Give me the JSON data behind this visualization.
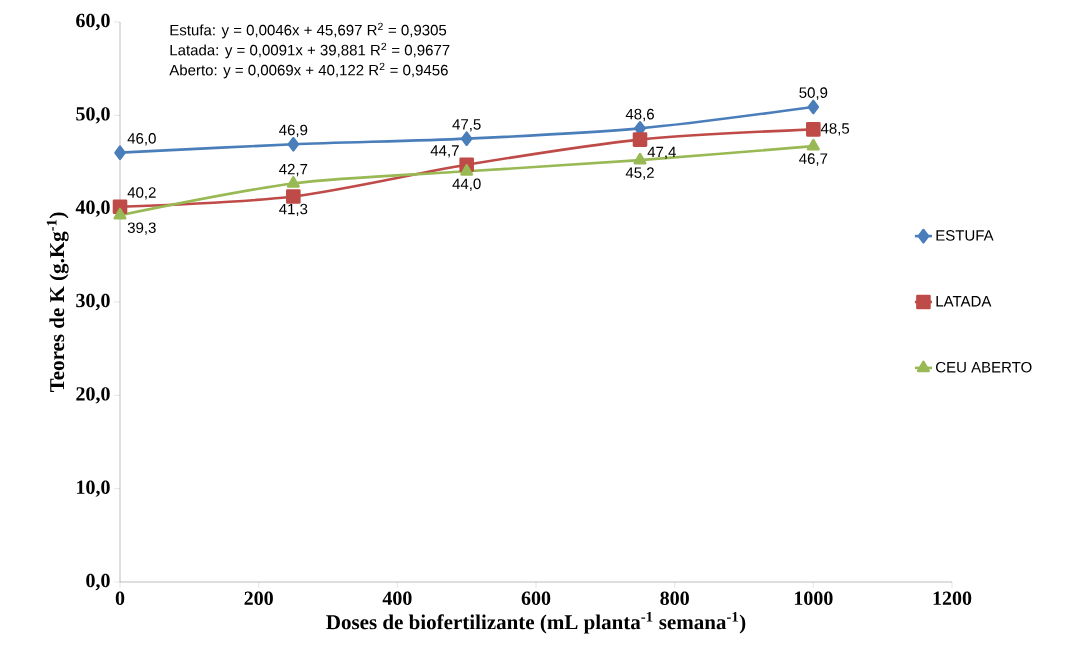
{
  "chart_data": {
    "type": "line",
    "xlabel": "Doses de biofertilizante (mL planta$^{-1}$ semana$^{-1}$)",
    "ylabel": "Teores de K (g.Kg$^{-1}$)",
    "x": [
      0,
      250,
      500,
      750,
      1000
    ],
    "series": [
      {
        "name": "ESTUFA",
        "color": "#4a7ebb",
        "marker": "diamond",
        "values": [
          46.0,
          46.9,
          47.5,
          48.6,
          50.9
        ],
        "value_labels": [
          "46,0",
          "46,9",
          "47,5",
          "48,6",
          "50,9"
        ]
      },
      {
        "name": "LATADA",
        "color": "#be4b48",
        "marker": "square",
        "values": [
          40.2,
          41.3,
          44.7,
          47.4,
          48.5
        ],
        "value_labels": [
          "40,2",
          "41,3",
          "44,7",
          "47,4",
          "48,5"
        ]
      },
      {
        "name": "CEU ABERTO",
        "color": "#98b954",
        "marker": "triangle",
        "values": [
          39.3,
          42.7,
          44.0,
          45.2,
          46.7
        ],
        "value_labels": [
          "39,3",
          "42,7",
          "44,0",
          "45,2",
          "46,7"
        ]
      }
    ],
    "xlim": [
      0,
      1200
    ],
    "xticks": [
      0,
      200,
      400,
      600,
      800,
      1000,
      1200
    ],
    "ylim": [
      0,
      60
    ],
    "yticks": [
      {
        "value": 0,
        "label": "0,0"
      },
      {
        "value": 10,
        "label": "10,0"
      },
      {
        "value": 20,
        "label": "20,0"
      },
      {
        "value": 30,
        "label": "30,0"
      },
      {
        "value": 40,
        "label": "40,0"
      },
      {
        "value": 50,
        "label": "50,0"
      },
      {
        "value": 60,
        "label": "60,0"
      }
    ],
    "annotations": [
      "Estufa:   y = 0,0046x + 45,697   R$^{2}$ = 0,9305",
      "Latada:  y = 0,0091x + 39,881   R$^{2}$ = 0,9677",
      "Aberto:  y = 0,0069x + 40,122   R$^{2}$ = 0,9456"
    ],
    "legend": "right",
    "grid": false
  }
}
